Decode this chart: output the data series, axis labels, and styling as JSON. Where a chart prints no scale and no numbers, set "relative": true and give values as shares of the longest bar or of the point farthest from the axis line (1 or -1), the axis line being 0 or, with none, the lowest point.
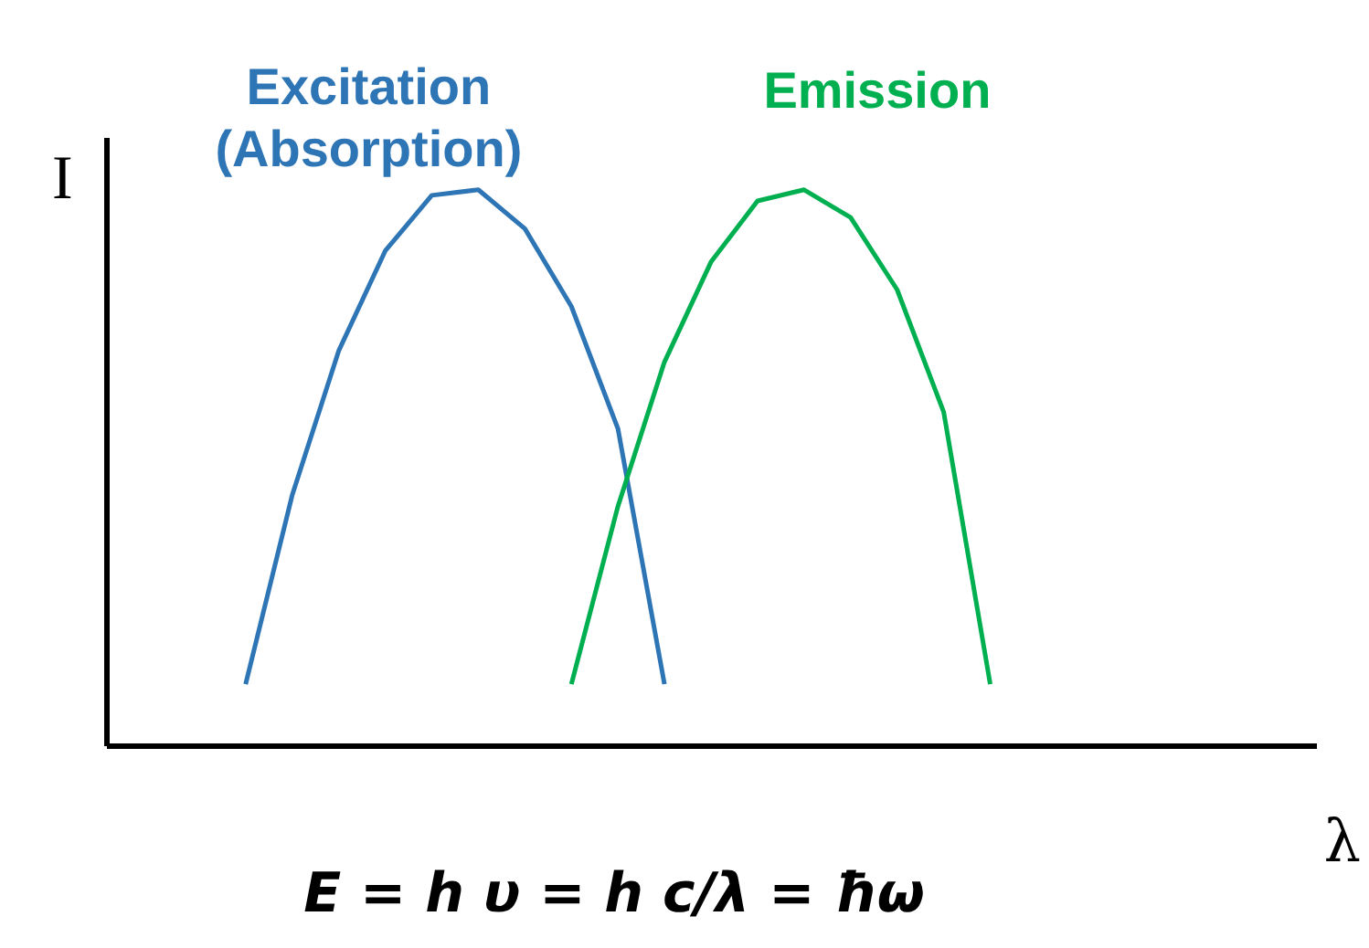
{
  "chart_data": {
    "type": "line",
    "relative": true,
    "xlabel": "λ",
    "ylabel": "I",
    "tick_labels": false,
    "grid": false,
    "legend": false,
    "categories": [
      null,
      null,
      null,
      null,
      null,
      null,
      null,
      null,
      null,
      null,
      null,
      null,
      null,
      null,
      null,
      null,
      null,
      null,
      null,
      null,
      null,
      null,
      null,
      null,
      null,
      null,
      null
    ],
    "series": [
      {
        "name": "Excitation (Absorption)",
        "color": "#2e75b6",
        "values": [
          null,
          null,
          null,
          0.11,
          0.45,
          0.71,
          0.89,
          0.99,
          1.0,
          0.93,
          0.79,
          0.57,
          0.11,
          null,
          null,
          null,
          null,
          null,
          null,
          null,
          null,
          null,
          null,
          null,
          null,
          null,
          null
        ]
      },
      {
        "name": "Emission",
        "color": "#00b050",
        "values": [
          null,
          null,
          null,
          null,
          null,
          null,
          null,
          null,
          null,
          null,
          0.11,
          0.43,
          0.69,
          0.87,
          0.98,
          1.0,
          0.95,
          0.82,
          0.6,
          0.11,
          null,
          null,
          null,
          null,
          null,
          null,
          null
        ]
      }
    ],
    "annotations": [
      "E = h υ = h c/λ = ħω"
    ]
  }
}
